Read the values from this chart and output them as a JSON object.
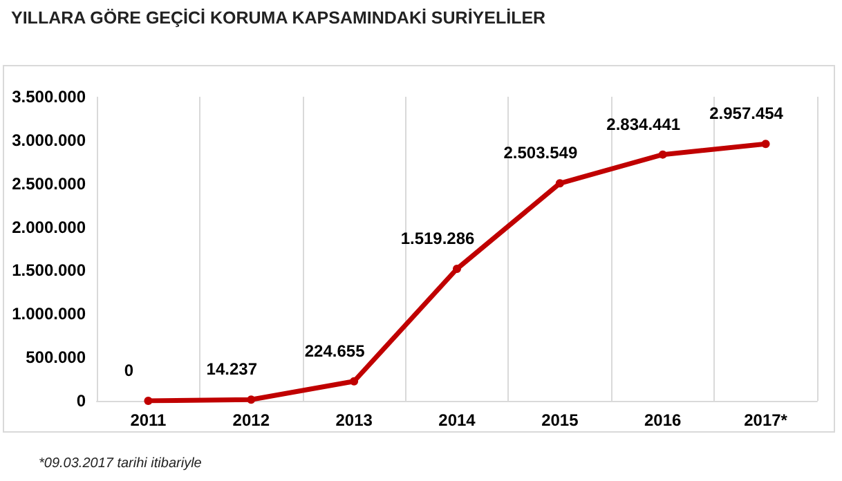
{
  "chart_data": {
    "type": "line",
    "title": "YILLARA GÖRE GEÇİCİ KORUMA KAPSAMINDAKİ SURİYELİLER",
    "categories": [
      "2011",
      "2012",
      "2013",
      "2014",
      "2015",
      "2016",
      "2017*"
    ],
    "series": [
      {
        "color": "#c00000",
        "values": [
          0,
          14237,
          224655,
          1519286,
          2503549,
          2834441,
          2957454
        ],
        "value_labels": [
          "0",
          "14.237",
          "224.655",
          "1.519.286",
          "2.503.549",
          "2.834.441",
          "2.957.454"
        ]
      }
    ],
    "ylim": [
      0,
      3500000
    ],
    "yticks": [
      0,
      {
        "value": 500000,
        "label": "500.000"
      },
      {
        "value": 1000000,
        "label": "1.000.000"
      },
      {
        "value": 1500000,
        "label": "1.500.000"
      },
      {
        "value": 2000000,
        "label": "2.000.000"
      },
      {
        "value": 2500000,
        "label": "2.500.000"
      },
      {
        "value": 3000000,
        "label": "3.000.000"
      },
      {
        "value": 3500000,
        "label": "3.500.000"
      }
    ],
    "grid": "x",
    "marker": "circle",
    "line_style": "solid",
    "annotations": [
      "*09.03.2017 tarihi itibariyle"
    ]
  }
}
